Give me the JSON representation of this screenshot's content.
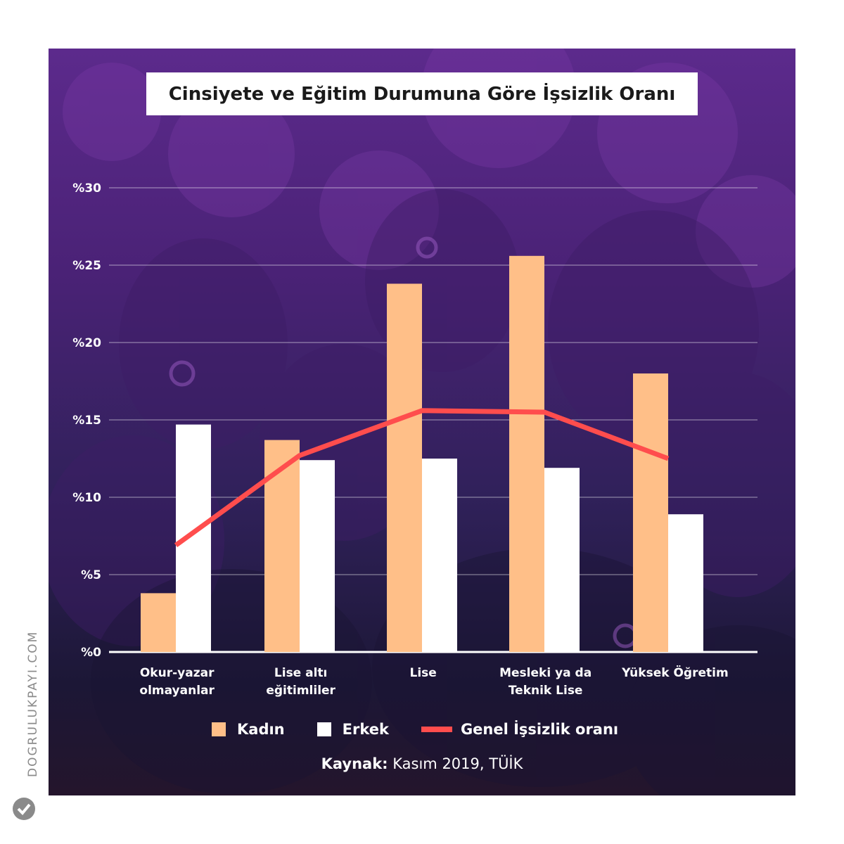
{
  "chart_data": {
    "type": "bar",
    "title": "Cinsiyete ve Eğitim Durumuna Göre İşsizlik Oranı",
    "categories": [
      [
        "Okur-yazar",
        "olmayanlar"
      ],
      [
        "Lise altı",
        "eğitimliler"
      ],
      [
        "Lise"
      ],
      [
        "Mesleki ya da",
        "Teknik Lise"
      ],
      [
        "Yüksek Öğretim"
      ]
    ],
    "series": [
      {
        "name": "Kadın",
        "type": "bar",
        "color": "#ffbf88",
        "values": [
          3.8,
          13.7,
          23.8,
          25.6,
          18.0
        ]
      },
      {
        "name": "Erkek",
        "type": "bar",
        "color": "#ffffff",
        "values": [
          14.7,
          12.4,
          12.5,
          11.9,
          8.9
        ]
      },
      {
        "name": "Genel İşsizlik oranı",
        "type": "line",
        "color": "#ff4d4d",
        "values": [
          6.9,
          12.7,
          15.6,
          15.5,
          12.5
        ]
      }
    ],
    "ylim": [
      0,
      30
    ],
    "yticks": [
      "%0",
      "%5",
      "%10",
      "%15",
      "%20",
      "%25",
      "%30"
    ],
    "grid": true,
    "legend": "bottom"
  },
  "source": {
    "label": "Kaynak:",
    "text": "Kasım 2019, TÜİK"
  },
  "brand": {
    "text": "DOGRULUKPAYI.COM"
  }
}
